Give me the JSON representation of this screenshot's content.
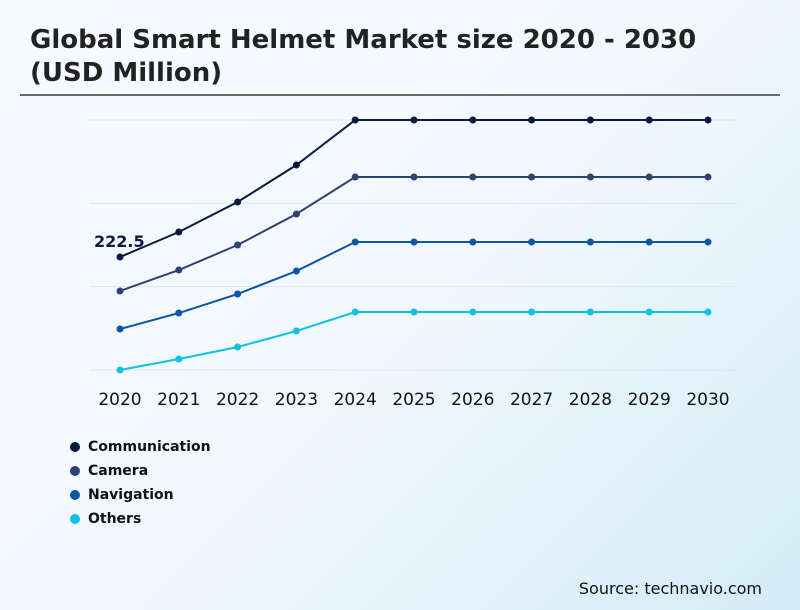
{
  "chart_data": {
    "type": "line",
    "title": "Global Smart Helmet Market size 2020 - 2030 (USD Million)",
    "categories": [
      "2020",
      "2021",
      "2022",
      "2023",
      "2024",
      "2025",
      "2026",
      "2027",
      "2028",
      "2029",
      "2030"
    ],
    "series": [
      {
        "name": "Communication",
        "color": "#0a1a3f",
        "values": [
          222.5,
          271.7,
          330.8,
          403.7,
          492.3,
          492.3,
          492.3,
          492.3,
          492.3,
          492.3,
          492.3
        ]
      },
      {
        "name": "Camera",
        "color": "#2e4374",
        "values": [
          155.6,
          196.9,
          246.1,
          307.2,
          380.0,
          380.0,
          380.0,
          380.0,
          380.0,
          380.0,
          380.0
        ]
      },
      {
        "name": "Navigation",
        "color": "#0b56a3",
        "values": [
          80.7,
          112.2,
          149.6,
          194.9,
          252.0,
          252.0,
          252.0,
          252.0,
          252.0,
          252.0,
          252.0
        ]
      },
      {
        "name": "Others",
        "color": "#10c2e0",
        "values": [
          0,
          21.7,
          45.3,
          76.8,
          114.2,
          114.2,
          114.2,
          114.2,
          114.2,
          114.2,
          114.2
        ]
      }
    ],
    "data_labels": [
      {
        "series": "Communication",
        "category": "2020",
        "text": "222.5"
      }
    ],
    "ylim": [
      0,
      492.3
    ],
    "grid": true,
    "legend": "bottom-left"
  },
  "source": "Source: technavio.com"
}
